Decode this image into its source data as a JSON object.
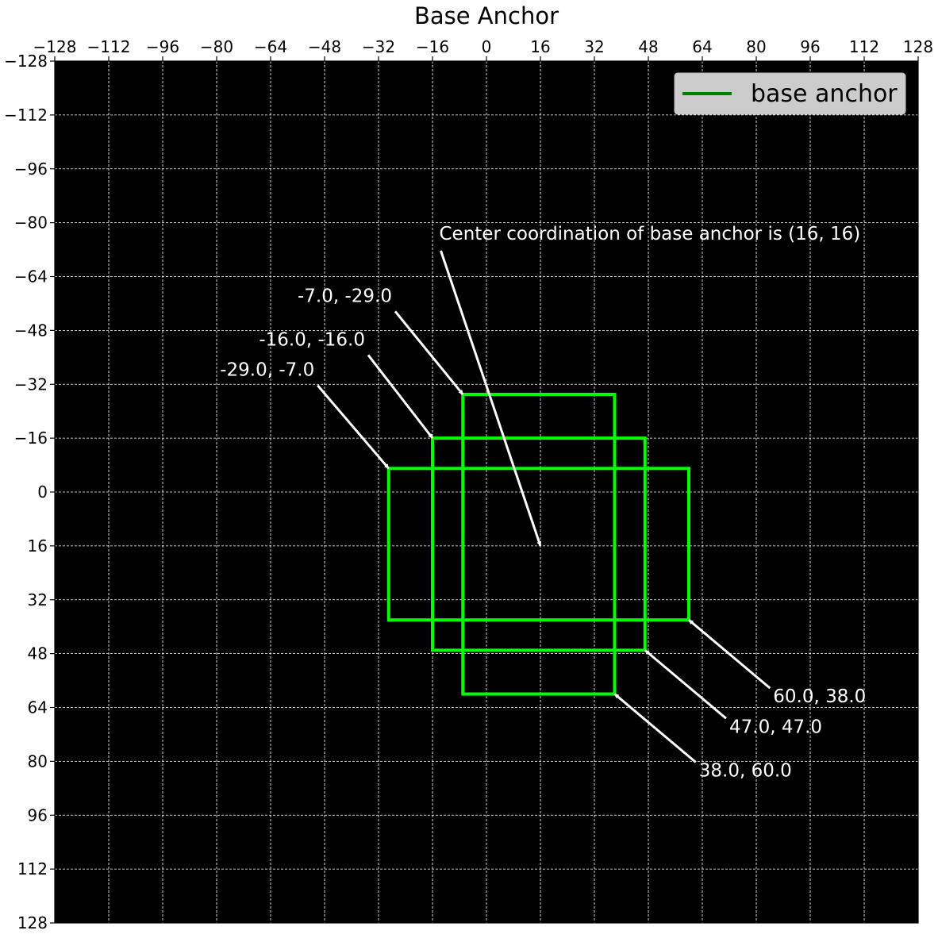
{
  "chart_data": {
    "type": "rectangle-plot",
    "title": "Base Anchor",
    "xlim": [
      -128,
      128
    ],
    "ylim": [
      128,
      -128
    ],
    "y_inverted": true,
    "x_axis_position": "top",
    "xticks": [
      -128,
      -112,
      -96,
      -80,
      -64,
      -48,
      -32,
      -16,
      0,
      16,
      32,
      48,
      64,
      80,
      96,
      112,
      128
    ],
    "yticks": [
      -128,
      -112,
      -96,
      -80,
      -64,
      -48,
      -32,
      -16,
      0,
      16,
      32,
      48,
      64,
      80,
      96,
      112,
      128
    ],
    "xtick_labels": [
      "−128",
      "−112",
      "−96",
      "−80",
      "−64",
      "−48",
      "−32",
      "−16",
      "0",
      "16",
      "32",
      "48",
      "64",
      "80",
      "96",
      "112",
      "128"
    ],
    "ytick_labels": [
      "−128",
      "−112",
      "−96",
      "−80",
      "−64",
      "−48",
      "−32",
      "−16",
      "0",
      "16",
      "32",
      "48",
      "64",
      "80",
      "96",
      "112",
      "128"
    ],
    "grid": true,
    "background_color": "#000000",
    "grid_color": "#ffffff",
    "box_color": "#00ff00",
    "annotation_color": "#ffffff",
    "legend": {
      "label": "base anchor",
      "line_color": "#008000",
      "placement": "top-right"
    },
    "boxes": [
      {
        "x1": -7.0,
        "y1": -29.0,
        "x2": 38.0,
        "y2": 60.0
      },
      {
        "x1": -16.0,
        "y1": -16.0,
        "x2": 47.0,
        "y2": 47.0
      },
      {
        "x1": -29.0,
        "y1": -7.0,
        "x2": 60.0,
        "y2": 38.0
      }
    ],
    "annotations": [
      {
        "text": "-7.0, -29.0",
        "point": [
          -7.0,
          -29.0
        ],
        "text_at": [
          -28,
          -56.5
        ],
        "anchor": "end"
      },
      {
        "text": "-16.0, -16.0",
        "point": [
          -16.0,
          -16.0
        ],
        "text_at": [
          -36,
          -43.5
        ],
        "anchor": "end"
      },
      {
        "text": "-29.0, -7.0",
        "point": [
          -29.0,
          -7.0
        ],
        "text_at": [
          -51,
          -34.5
        ],
        "anchor": "end"
      },
      {
        "text": "60.0, 38.0",
        "point": [
          60.0,
          38.0
        ],
        "text_at": [
          85,
          62.5
        ],
        "anchor": "start"
      },
      {
        "text": "47.0, 47.0",
        "point": [
          47.0,
          47.0
        ],
        "text_at": [
          72,
          71.5
        ],
        "anchor": "start"
      },
      {
        "text": "38.0, 60.0",
        "point": [
          38.0,
          60.0
        ],
        "text_at": [
          63,
          84.5
        ],
        "anchor": "start"
      },
      {
        "text": "Center coordination of base anchor is (16, 16)",
        "point": [
          16,
          16
        ],
        "text_at": [
          -14,
          -75
        ],
        "anchor": "start"
      }
    ]
  }
}
